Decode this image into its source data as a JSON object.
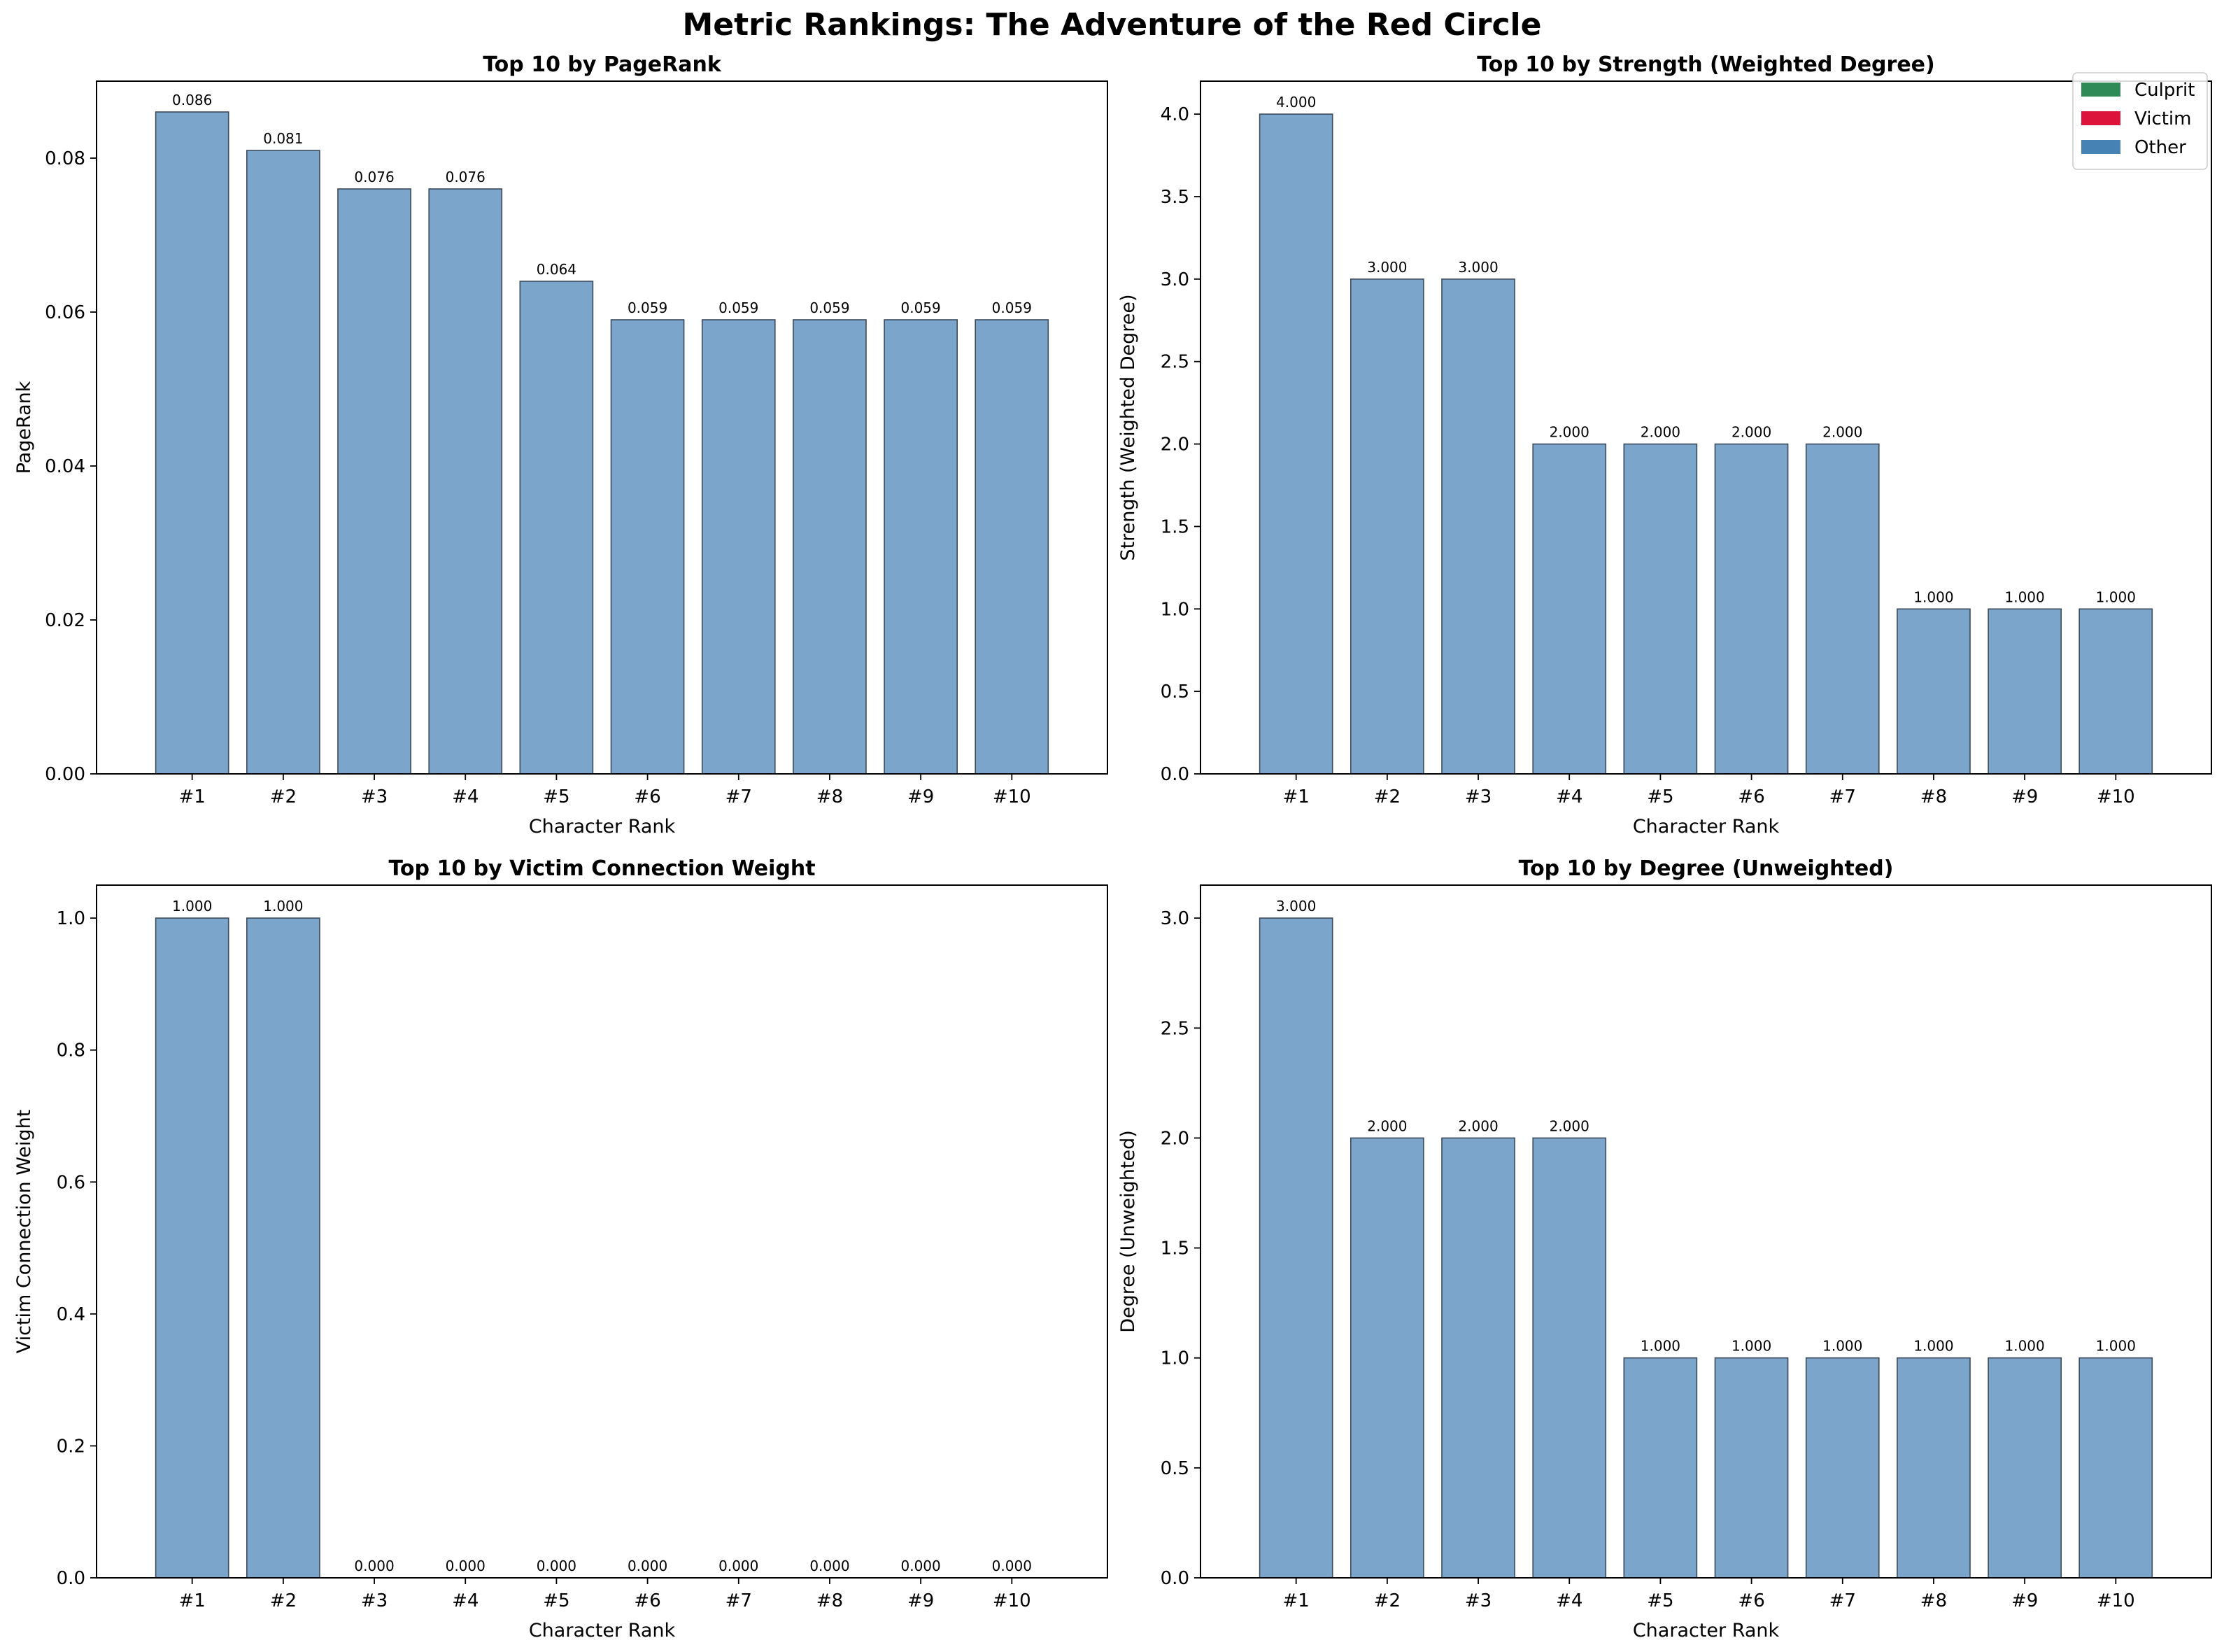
{
  "suptitle": "Metric Rankings: The Adventure of the Red Circle",
  "colors": {
    "bar": "#7BA5CA",
    "bar_edge": "#3D4B5C",
    "culprit": "#2E8B57",
    "victim": "#DC143C",
    "other": "#4682B4"
  },
  "legend": [
    {
      "label": "Culprit",
      "color": "#2E8B57"
    },
    {
      "label": "Victim",
      "color": "#DC143C"
    },
    {
      "label": "Other",
      "color": "#4682B4"
    }
  ],
  "chart_data": [
    {
      "type": "bar",
      "title": "Top 10 by PageRank",
      "xlabel": "Character Rank",
      "ylabel": "PageRank",
      "categories": [
        "#1",
        "#2",
        "#3",
        "#4",
        "#5",
        "#6",
        "#7",
        "#8",
        "#9",
        "#10"
      ],
      "values": [
        0.086,
        0.081,
        0.076,
        0.076,
        0.064,
        0.059,
        0.059,
        0.059,
        0.059,
        0.059
      ],
      "value_labels": [
        "0.086",
        "0.081",
        "0.076",
        "0.076",
        "0.064",
        "0.059",
        "0.059",
        "0.059",
        "0.059",
        "0.059"
      ],
      "ylim": [
        0,
        0.09
      ],
      "yticks": [
        0,
        0.02,
        0.04,
        0.06,
        0.08
      ],
      "ytick_labels": [
        "0.00",
        "0.02",
        "0.04",
        "0.06",
        "0.08"
      ],
      "legend": false
    },
    {
      "type": "bar",
      "title": "Top 10 by Strength (Weighted Degree)",
      "xlabel": "Character Rank",
      "ylabel": "Strength (Weighted Degree)",
      "categories": [
        "#1",
        "#2",
        "#3",
        "#4",
        "#5",
        "#6",
        "#7",
        "#8",
        "#9",
        "#10"
      ],
      "values": [
        4,
        3,
        3,
        2,
        2,
        2,
        2,
        1,
        1,
        1
      ],
      "value_labels": [
        "4.000",
        "3.000",
        "3.000",
        "2.000",
        "2.000",
        "2.000",
        "2.000",
        "1.000",
        "1.000",
        "1.000"
      ],
      "ylim": [
        0,
        4.2
      ],
      "yticks": [
        0,
        0.5,
        1,
        1.5,
        2,
        2.5,
        3,
        3.5,
        4
      ],
      "ytick_labels": [
        "0.0",
        "0.5",
        "1.0",
        "1.5",
        "2.0",
        "2.5",
        "3.0",
        "3.5",
        "4.0"
      ],
      "legend": true,
      "legend_position": "top-right"
    },
    {
      "type": "bar",
      "title": "Top 10 by Victim Connection Weight",
      "xlabel": "Character Rank",
      "ylabel": "Victim Connection Weight",
      "categories": [
        "#1",
        "#2",
        "#3",
        "#4",
        "#5",
        "#6",
        "#7",
        "#8",
        "#9",
        "#10"
      ],
      "values": [
        1,
        1,
        0,
        0,
        0,
        0,
        0,
        0,
        0,
        0
      ],
      "value_labels": [
        "1.000",
        "1.000",
        "0.000",
        "0.000",
        "0.000",
        "0.000",
        "0.000",
        "0.000",
        "0.000",
        "0.000"
      ],
      "ylim": [
        0,
        1.05
      ],
      "yticks": [
        0,
        0.2,
        0.4,
        0.6,
        0.8,
        1.0
      ],
      "ytick_labels": [
        "0.0",
        "0.2",
        "0.4",
        "0.6",
        "0.8",
        "1.0"
      ],
      "legend": false
    },
    {
      "type": "bar",
      "title": "Top 10 by Degree (Unweighted)",
      "xlabel": "Character Rank",
      "ylabel": "Degree (Unweighted)",
      "categories": [
        "#1",
        "#2",
        "#3",
        "#4",
        "#5",
        "#6",
        "#7",
        "#8",
        "#9",
        "#10"
      ],
      "values": [
        3,
        2,
        2,
        2,
        1,
        1,
        1,
        1,
        1,
        1
      ],
      "value_labels": [
        "3.000",
        "2.000",
        "2.000",
        "2.000",
        "1.000",
        "1.000",
        "1.000",
        "1.000",
        "1.000",
        "1.000"
      ],
      "ylim": [
        0,
        3.15
      ],
      "yticks": [
        0,
        0.5,
        1,
        1.5,
        2,
        2.5,
        3
      ],
      "ytick_labels": [
        "0.0",
        "0.5",
        "1.0",
        "1.5",
        "2.0",
        "2.5",
        "3.0"
      ],
      "legend": false
    }
  ]
}
